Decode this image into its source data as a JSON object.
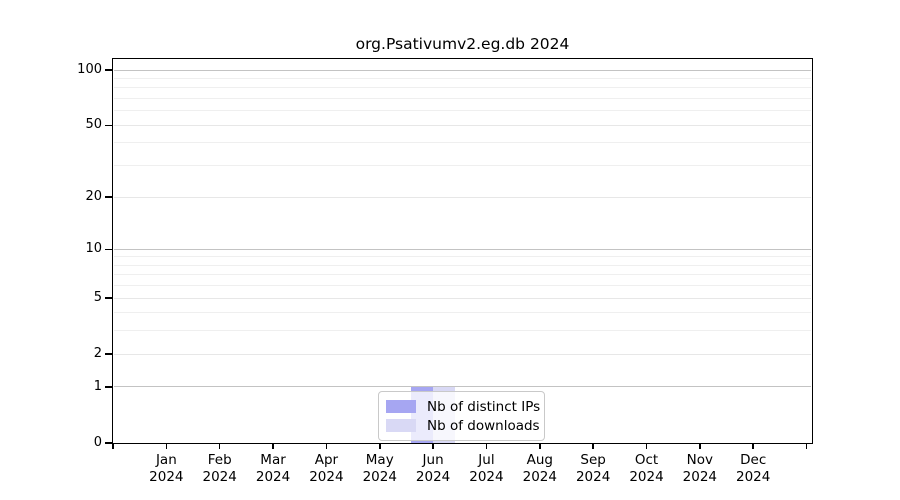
{
  "window": {
    "title": "org.Psativumv2.eg.db 2024"
  },
  "chart_data": {
    "type": "bar",
    "title": "org.Psativumv2.eg.db 2024",
    "xlabel": "",
    "ylabel": "",
    "yscale": "log1p",
    "grid": true,
    "legend_position": "bottom-center",
    "categories": [
      "Jan 2024",
      "Feb 2024",
      "Mar 2024",
      "Apr 2024",
      "May 2024",
      "Jun 2024",
      "Jul 2024",
      "Aug 2024",
      "Sep 2024",
      "Oct 2024",
      "Nov 2024",
      "Dec 2024"
    ],
    "series": [
      {
        "name": "Nb of distinct IPs",
        "color": "#a6a6f2",
        "values": [
          0,
          0,
          0,
          0,
          0,
          1,
          0,
          0,
          0,
          0,
          0,
          0
        ]
      },
      {
        "name": "Nb of downloads",
        "color": "#d9d9f5",
        "values": [
          0,
          0,
          0,
          0,
          0,
          1,
          0,
          0,
          0,
          0,
          0,
          0
        ]
      }
    ],
    "y_tick_values": [
      0,
      1,
      2,
      5,
      10,
      20,
      50,
      100
    ],
    "y_tick_labels": [
      "0",
      "1",
      "2",
      "5",
      "10",
      "20",
      "50",
      "100"
    ],
    "y_minor_gridlines": [
      3,
      4,
      6,
      7,
      8,
      9,
      30,
      40,
      60,
      70,
      80,
      90
    ],
    "ylim": [
      0,
      115
    ]
  },
  "legend": {
    "items": [
      "Nb of distinct IPs",
      "Nb of downloads"
    ]
  },
  "colors": {
    "background": "#ffffff",
    "axis": "#000000",
    "gridline_decade": "#c3c3c3",
    "gridline_major": "#e7e7e7",
    "gridline_minor": "#efefef",
    "bar_distinct_ips": "#a6a6f2",
    "bar_downloads": "#d9d9f5",
    "legend_border": "#c9c9c9"
  }
}
